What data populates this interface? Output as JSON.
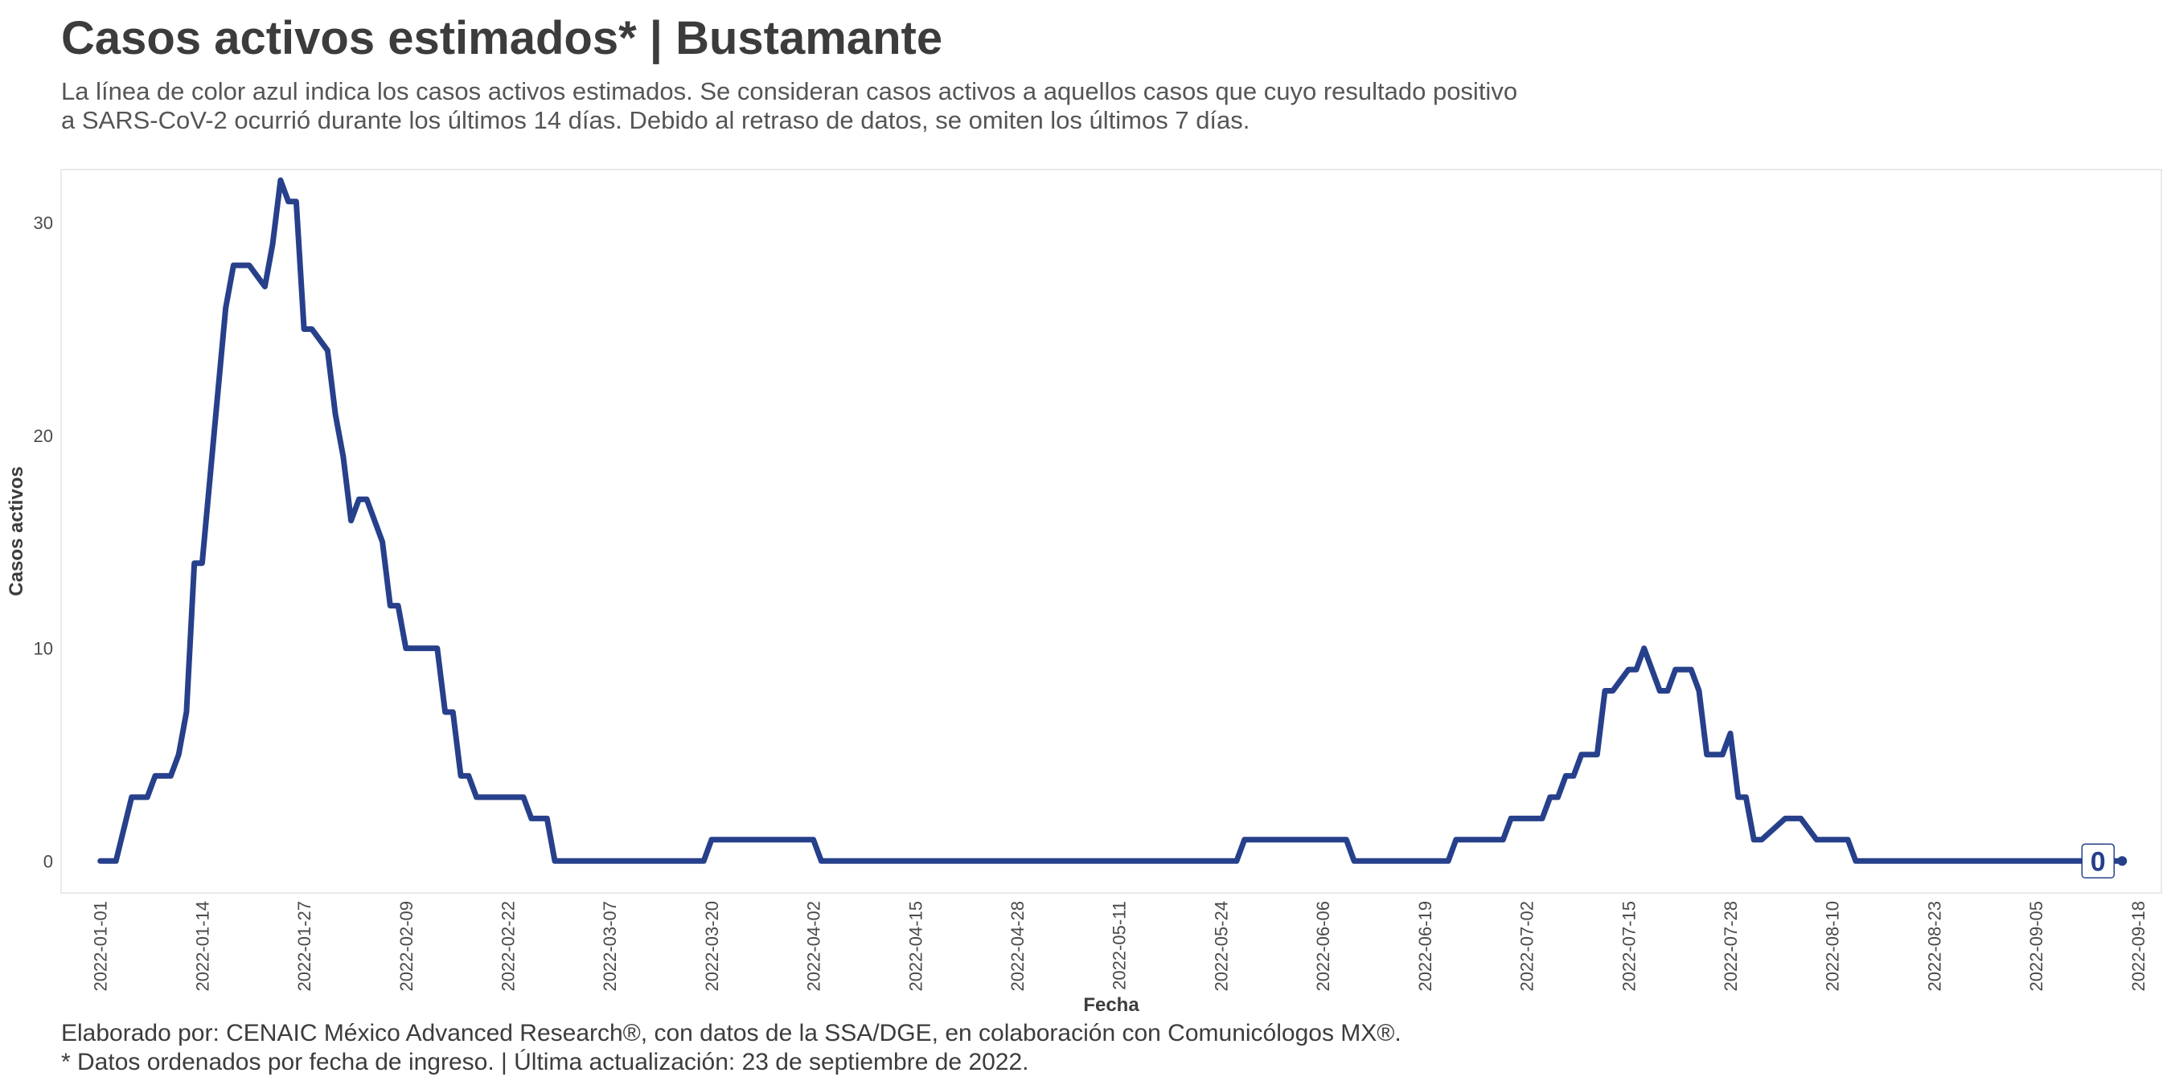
{
  "title": "Casos activos estimados* | Bustamante",
  "subtitle_lines": [
    "La línea de color azul indica los casos activos estimados. Se consideran casos activos a aquellos casos que cuyo resultado positivo",
    "a SARS-CoV-2 ocurrió durante los últimos 14 días. Debido al retraso de datos, se omiten los últimos 7 días."
  ],
  "caption_lines": [
    "Elaborado por: CENAIC México Advanced Research®, con datos de la SSA/DGE, en colaboración con Comunicólogos MX®.",
    "* Datos ordenados por fecha de ingreso. | Última actualización: 23 de septiembre de 2022."
  ],
  "colors": {
    "line": "#27408b",
    "panel_border": "#e3e3e3",
    "text": "#3c3c3c"
  },
  "chart_data": {
    "type": "line",
    "xlabel": "Fecha",
    "ylabel": "Casos activos",
    "xlim": [
      "2021-12-27",
      "2022-09-21"
    ],
    "ylim": [
      -1.5,
      32.5
    ],
    "y_ticks": [
      0,
      10,
      20,
      30
    ],
    "x_ticks": [
      "2022-01-01",
      "2022-01-14",
      "2022-01-27",
      "2022-02-09",
      "2022-02-22",
      "2022-03-07",
      "2022-03-20",
      "2022-04-02",
      "2022-04-15",
      "2022-04-28",
      "2022-05-11",
      "2022-05-24",
      "2022-06-06",
      "2022-06-19",
      "2022-07-02",
      "2022-07-15",
      "2022-07-28",
      "2022-08-10",
      "2022-08-23",
      "2022-09-05",
      "2022-09-18"
    ],
    "grid": false,
    "legend": "none",
    "end_label": "0",
    "series": [
      {
        "x": [
          "2022-01-01",
          "2022-01-03",
          "2022-01-05",
          "2022-01-06",
          "2022-01-07",
          "2022-01-08",
          "2022-01-09",
          "2022-01-10",
          "2022-01-11",
          "2022-01-12",
          "2022-01-13",
          "2022-01-14",
          "2022-01-16",
          "2022-01-17",
          "2022-01-18",
          "2022-01-19",
          "2022-01-20",
          "2022-01-22",
          "2022-01-23",
          "2022-01-24",
          "2022-01-25",
          "2022-01-26",
          "2022-01-27",
          "2022-01-28",
          "2022-01-30",
          "2022-01-31",
          "2022-02-01",
          "2022-02-02",
          "2022-02-03",
          "2022-02-04",
          "2022-02-06",
          "2022-02-07",
          "2022-02-08",
          "2022-02-09",
          "2022-02-10",
          "2022-02-13",
          "2022-02-14",
          "2022-02-15",
          "2022-02-16",
          "2022-02-17",
          "2022-02-18",
          "2022-02-24",
          "2022-02-25",
          "2022-02-27",
          "2022-02-28",
          "2022-03-19",
          "2022-03-20",
          "2022-04-02",
          "2022-04-03",
          "2022-05-26",
          "2022-05-27",
          "2022-06-09",
          "2022-06-10",
          "2022-06-22",
          "2022-06-23",
          "2022-06-29",
          "2022-06-30",
          "2022-07-04",
          "2022-07-05",
          "2022-07-06",
          "2022-07-07",
          "2022-07-08",
          "2022-07-09",
          "2022-07-10",
          "2022-07-11",
          "2022-07-12",
          "2022-07-13",
          "2022-07-15",
          "2022-07-16",
          "2022-07-17",
          "2022-07-18",
          "2022-07-19",
          "2022-07-20",
          "2022-07-21",
          "2022-07-22",
          "2022-07-23",
          "2022-07-24",
          "2022-07-25",
          "2022-07-27",
          "2022-07-28",
          "2022-07-29",
          "2022-07-30",
          "2022-07-31",
          "2022-08-01",
          "2022-08-04",
          "2022-08-06",
          "2022-08-08",
          "2022-08-09",
          "2022-08-11",
          "2022-08-12",
          "2022-08-13",
          "2022-08-14",
          "2022-08-25",
          "2022-08-26",
          "2022-09-15",
          "2022-09-16"
        ],
        "y": [
          0,
          0,
          3,
          3,
          3,
          4,
          4,
          4,
          5,
          7,
          14,
          14,
          22,
          26,
          28,
          28,
          28,
          27,
          29,
          32,
          31,
          31,
          25,
          25,
          24,
          21,
          19,
          16,
          17,
          17,
          15,
          12,
          12,
          10,
          10,
          10,
          7,
          7,
          4,
          4,
          3,
          3,
          2,
          2,
          0,
          0,
          1,
          1,
          0,
          0,
          1,
          1,
          0,
          0,
          1,
          1,
          2,
          2,
          3,
          3,
          4,
          4,
          5,
          5,
          5,
          8,
          8,
          9,
          9,
          10,
          9,
          8,
          8,
          9,
          9,
          9,
          8,
          5,
          5,
          6,
          3,
          3,
          1,
          1,
          2,
          2,
          1,
          1,
          1,
          1,
          0,
          0,
          0,
          0,
          0,
          0
        ]
      }
    ]
  }
}
